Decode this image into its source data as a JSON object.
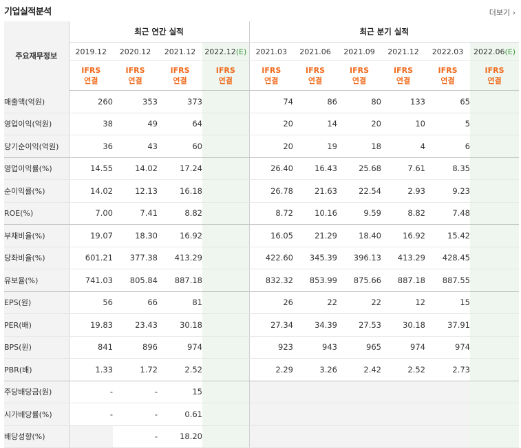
{
  "header": {
    "title": "기업실적분석",
    "more_label": "더보기"
  },
  "table": {
    "row_header": "주요재무정보",
    "annual_header": "최근 연간 실적",
    "quarter_header": "최근 분기 실적",
    "annual_periods": [
      "2019.12",
      "2020.12",
      "2021.12",
      "2022.12"
    ],
    "annual_estimate_mark": "(E)",
    "quarter_periods": [
      "2021.03",
      "2021.06",
      "2021.09",
      "2021.12",
      "2022.03",
      "2022.06"
    ],
    "quarter_estimate_mark": "(E)",
    "ifrs_line1": "IFRS",
    "ifrs_line2": "연결",
    "rows": [
      {
        "label": "매출액(억원)",
        "values": [
          "260",
          "353",
          "373",
          "",
          "74",
          "86",
          "80",
          "133",
          "65",
          ""
        ]
      },
      {
        "label": "영업이익(억원)",
        "values": [
          "38",
          "49",
          "64",
          "",
          "20",
          "14",
          "20",
          "10",
          "5",
          ""
        ]
      },
      {
        "label": "당기순이익(억원)",
        "values": [
          "36",
          "43",
          "60",
          "",
          "20",
          "19",
          "18",
          "4",
          "6",
          ""
        ]
      },
      {
        "label": "영업이익률(%)",
        "values": [
          "14.55",
          "14.02",
          "17.24",
          "",
          "26.40",
          "16.43",
          "25.68",
          "7.61",
          "8.35",
          ""
        ]
      },
      {
        "label": "순이익률(%)",
        "values": [
          "14.02",
          "12.13",
          "16.18",
          "",
          "26.78",
          "21.63",
          "22.54",
          "2.93",
          "9.23",
          ""
        ]
      },
      {
        "label": "ROE(%)",
        "values": [
          "7.00",
          "7.41",
          "8.82",
          "",
          "8.72",
          "10.16",
          "9.59",
          "8.82",
          "7.48",
          ""
        ]
      },
      {
        "label": "부채비율(%)",
        "values": [
          "19.07",
          "18.30",
          "16.92",
          "",
          "16.05",
          "21.29",
          "18.40",
          "16.92",
          "15.42",
          ""
        ]
      },
      {
        "label": "당좌비율(%)",
        "values": [
          "601.21",
          "377.38",
          "413.29",
          "",
          "422.60",
          "345.39",
          "396.13",
          "413.29",
          "428.45",
          ""
        ]
      },
      {
        "label": "유보율(%)",
        "values": [
          "741.03",
          "805.84",
          "887.18",
          "",
          "832.32",
          "853.99",
          "875.66",
          "887.18",
          "887.55",
          ""
        ]
      },
      {
        "label": "EPS(원)",
        "values": [
          "56",
          "66",
          "81",
          "",
          "26",
          "22",
          "22",
          "12",
          "15",
          ""
        ]
      },
      {
        "label": "PER(배)",
        "values": [
          "19.83",
          "23.43",
          "30.18",
          "",
          "27.34",
          "34.39",
          "27.53",
          "30.18",
          "37.91",
          ""
        ]
      },
      {
        "label": "BPS(원)",
        "values": [
          "841",
          "896",
          "974",
          "",
          "923",
          "943",
          "965",
          "974",
          "974",
          ""
        ]
      },
      {
        "label": "PBR(배)",
        "values": [
          "1.33",
          "1.72",
          "2.52",
          "",
          "2.29",
          "3.26",
          "2.42",
          "2.52",
          "2.73",
          ""
        ]
      },
      {
        "label": "주당배당금(원)",
        "values": [
          "-",
          "-",
          "15",
          "",
          "",
          "",
          "",
          "",
          "",
          ""
        ]
      },
      {
        "label": "시가배당률(%)",
        "values": [
          "-",
          "-",
          "0.61",
          "",
          "",
          "",
          "",
          "",
          "",
          ""
        ]
      },
      {
        "label": "배당성향(%)",
        "values": [
          "",
          "-",
          "18.20",
          "",
          "",
          "",
          "",
          "",
          "",
          ""
        ]
      }
    ]
  }
}
